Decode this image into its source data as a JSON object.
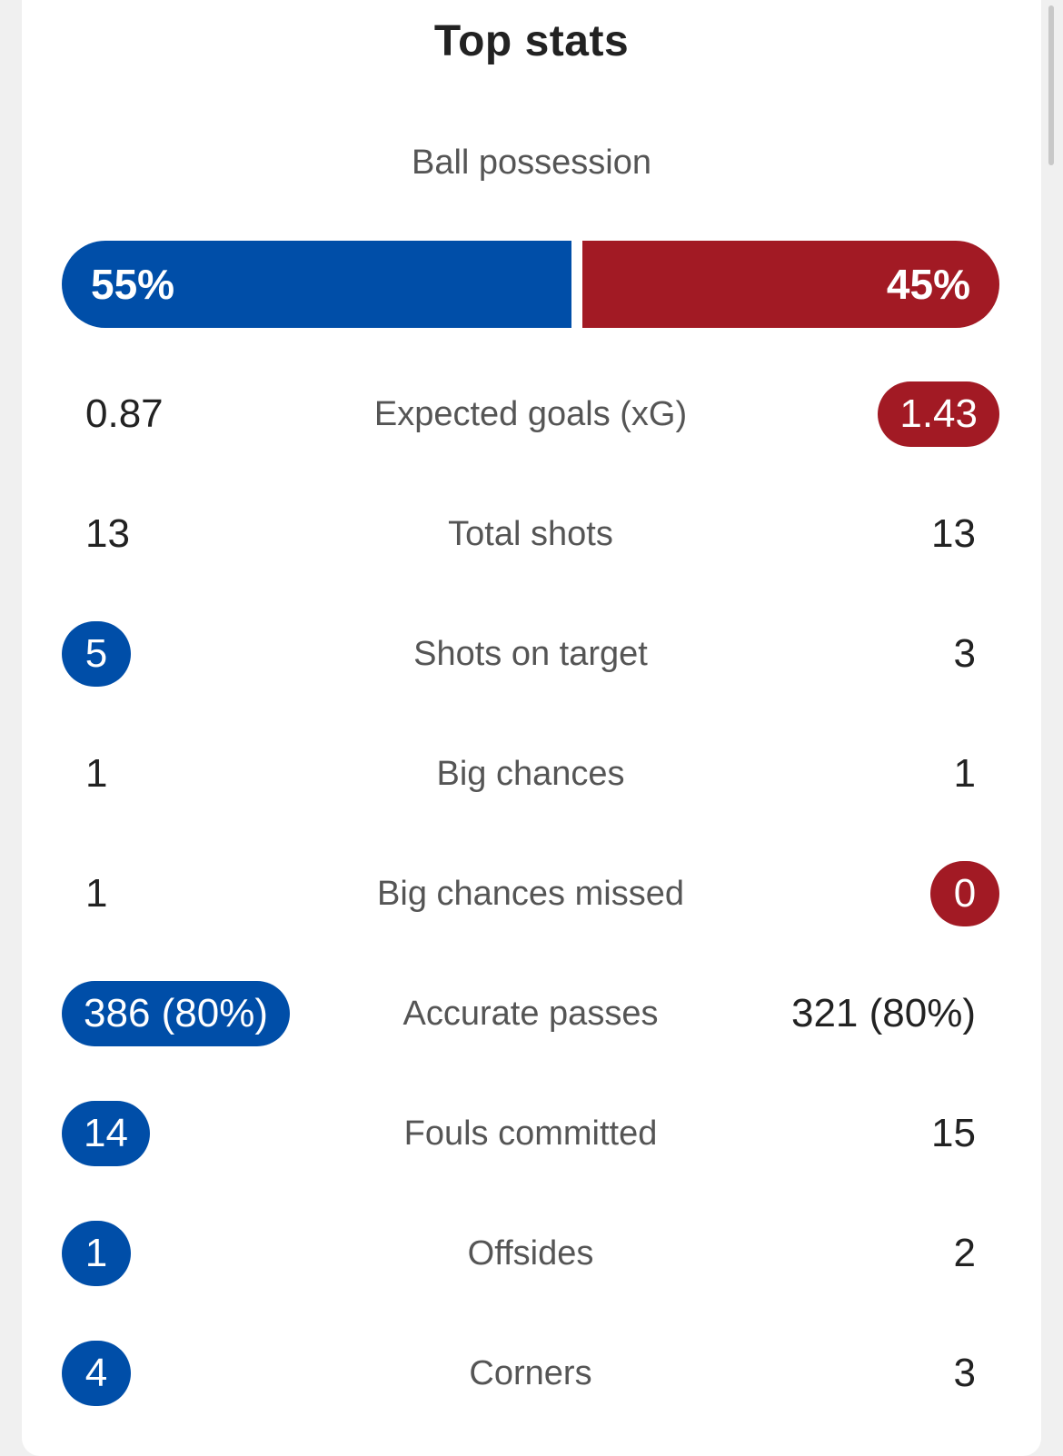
{
  "title": "Top stats",
  "colors": {
    "home": "#004ea8",
    "away": "#a21a24",
    "text": "#222222",
    "label": "#555555"
  },
  "possession": {
    "label": "Ball possession",
    "home": "55%",
    "away": "45%",
    "home_fraction": 0.55,
    "away_fraction": 0.45
  },
  "stats": [
    {
      "label": "Expected goals (xG)",
      "home": "0.87",
      "away": "1.43",
      "highlight": "away"
    },
    {
      "label": "Total shots",
      "home": "13",
      "away": "13",
      "highlight": "none"
    },
    {
      "label": "Shots on target",
      "home": "5",
      "away": "3",
      "highlight": "home"
    },
    {
      "label": "Big chances",
      "home": "1",
      "away": "1",
      "highlight": "none"
    },
    {
      "label": "Big chances missed",
      "home": "1",
      "away": "0",
      "highlight": "away"
    },
    {
      "label": "Accurate passes",
      "home": "386 (80%)",
      "away": "321 (80%)",
      "highlight": "home"
    },
    {
      "label": "Fouls committed",
      "home": "14",
      "away": "15",
      "highlight": "home"
    },
    {
      "label": "Offsides",
      "home": "1",
      "away": "2",
      "highlight": "home"
    },
    {
      "label": "Corners",
      "home": "4",
      "away": "3",
      "highlight": "home"
    }
  ]
}
